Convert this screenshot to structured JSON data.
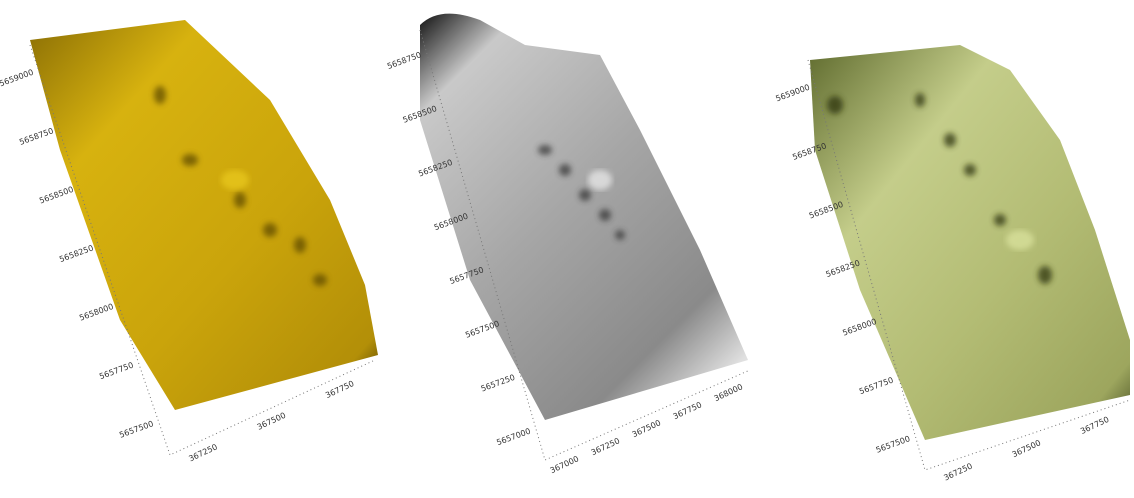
{
  "panels": [
    {
      "y_labels": [
        "5659000",
        "5658750",
        "5658500",
        "5658250",
        "5658000",
        "5657750",
        "5657500"
      ],
      "x_labels": [
        "367250",
        "367500",
        "367750"
      ]
    },
    {
      "y_labels": [
        "5658750",
        "5658500",
        "5658250",
        "5658000",
        "5657750",
        "5657500",
        "5657250",
        "5657000"
      ],
      "x_labels": [
        "367000",
        "367250",
        "367500",
        "367750",
        "368000"
      ]
    },
    {
      "y_labels": [
        "5659000",
        "5658750",
        "5658500",
        "5658250",
        "5658000",
        "5657750",
        "5657500"
      ],
      "x_labels": [
        "367250",
        "367500",
        "367750"
      ]
    }
  ]
}
